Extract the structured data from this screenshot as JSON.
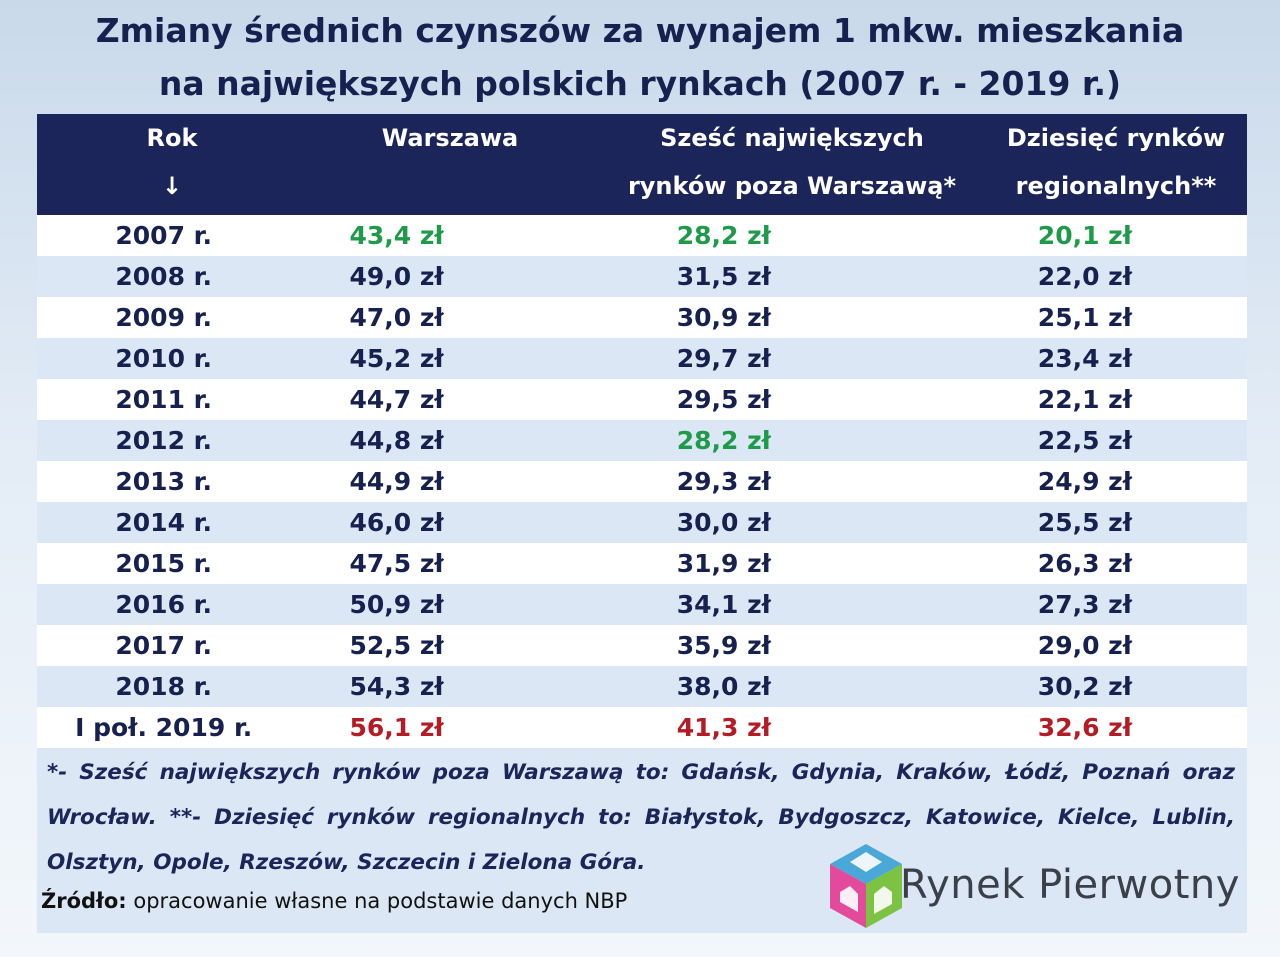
{
  "title": {
    "line1": "Zmiany średnich czynszów za wynajem 1 mkw. mieszkania",
    "line2": "na największych polskich rynkach (2007 r. - 2019 r.)"
  },
  "table": {
    "headers": {
      "rok_line1": "Rok",
      "rok_line2": "↓",
      "warszawa": "Warszawa",
      "szesc_line1": "Sześć największych",
      "szesc_line2": "rynków poza Warszawą*",
      "dziesiec_line1": "Dziesięć rynków",
      "dziesiec_line2": "regionalnych**"
    },
    "rows": [
      {
        "year": "2007 r.",
        "warszawa": "43,4 zł",
        "szesc": "28,2 zł",
        "dziesiec": "20,1 zł"
      },
      {
        "year": "2008 r.",
        "warszawa": "49,0 zł",
        "szesc": "31,5 zł",
        "dziesiec": "22,0 zł"
      },
      {
        "year": "2009 r.",
        "warszawa": "47,0 zł",
        "szesc": "30,9 zł",
        "dziesiec": "25,1 zł"
      },
      {
        "year": "2010 r.",
        "warszawa": "45,2 zł",
        "szesc": "29,7 zł",
        "dziesiec": "23,4 zł"
      },
      {
        "year": "2011 r.",
        "warszawa": "44,7 zł",
        "szesc": "29,5 zł",
        "dziesiec": "22,1 zł"
      },
      {
        "year": "2012 r.",
        "warszawa": "44,8 zł",
        "szesc": "28,2 zł",
        "dziesiec": "22,5 zł"
      },
      {
        "year": "2013 r.",
        "warszawa": "44,9 zł",
        "szesc": "29,3 zł",
        "dziesiec": "24,9 zł"
      },
      {
        "year": "2014 r.",
        "warszawa": "46,0 zł",
        "szesc": "30,0 zł",
        "dziesiec": "25,5 zł"
      },
      {
        "year": "2015 r.",
        "warszawa": "47,5 zł",
        "szesc": "31,9 zł",
        "dziesiec": "26,3 zł"
      },
      {
        "year": "2016 r.",
        "warszawa": "50,9 zł",
        "szesc": "34,1 zł",
        "dziesiec": "27,3 zł"
      },
      {
        "year": "2017 r.",
        "warszawa": "52,5 zł",
        "szesc": "35,9 zł",
        "dziesiec": "29,0 zł"
      },
      {
        "year": "2018 r.",
        "warszawa": "54,3 zł",
        "szesc": "38,0 zł",
        "dziesiec": "30,2 zł"
      },
      {
        "year": "I poł. 2019 r.",
        "warszawa": "56,1 zł",
        "szesc": "41,3 zł",
        "dziesiec": "32,6 zł"
      }
    ]
  },
  "colors": {
    "header_bg": "#1b2559",
    "text_dark": "#16214f",
    "minimum_green": "#1f9a4a",
    "latest_red": "#b41b24",
    "row_alt": "#dbe7f5"
  },
  "notes": {
    "text": "*- Sześć największych rynków poza Warszawą to: Gdańsk, Gdynia, Kraków, Łódź, Poznań oraz Wrocław. **- Dziesięć rynków regionalnych to: Białystok, Bydgoszcz, Katowice, Kielce, Lublin, Olsztyn, Opole, Rzeszów, Szczecin i Zielona Góra."
  },
  "source": {
    "label": "Źródło:",
    "text": "opracowanie własne na podstawie danych NBP"
  },
  "logo": {
    "icon": "house-cube-icon",
    "text": "Rynek Pierwotny"
  }
}
